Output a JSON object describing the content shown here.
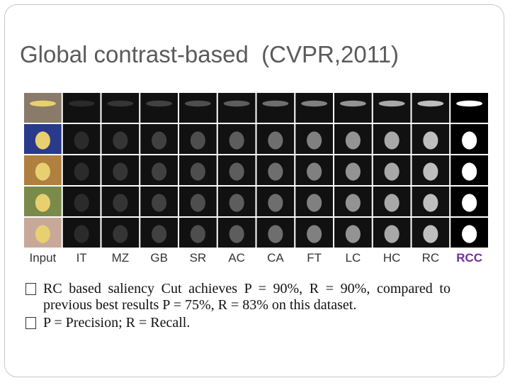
{
  "header": {
    "title": "Global contrast-based  (CVPR,2011)"
  },
  "figure": {
    "columns": [
      "Input",
      "IT",
      "MZ",
      "GB",
      "SR",
      "AC",
      "CA",
      "FT",
      "LC",
      "HC",
      "RC",
      "RCC"
    ]
  },
  "bullets": [
    "RC based saliency Cut achieves P = 90%, R = 90%, compared to previous best results P = 75%, R = 83% on this dataset.",
    "P = Precision; R = Recall."
  ]
}
